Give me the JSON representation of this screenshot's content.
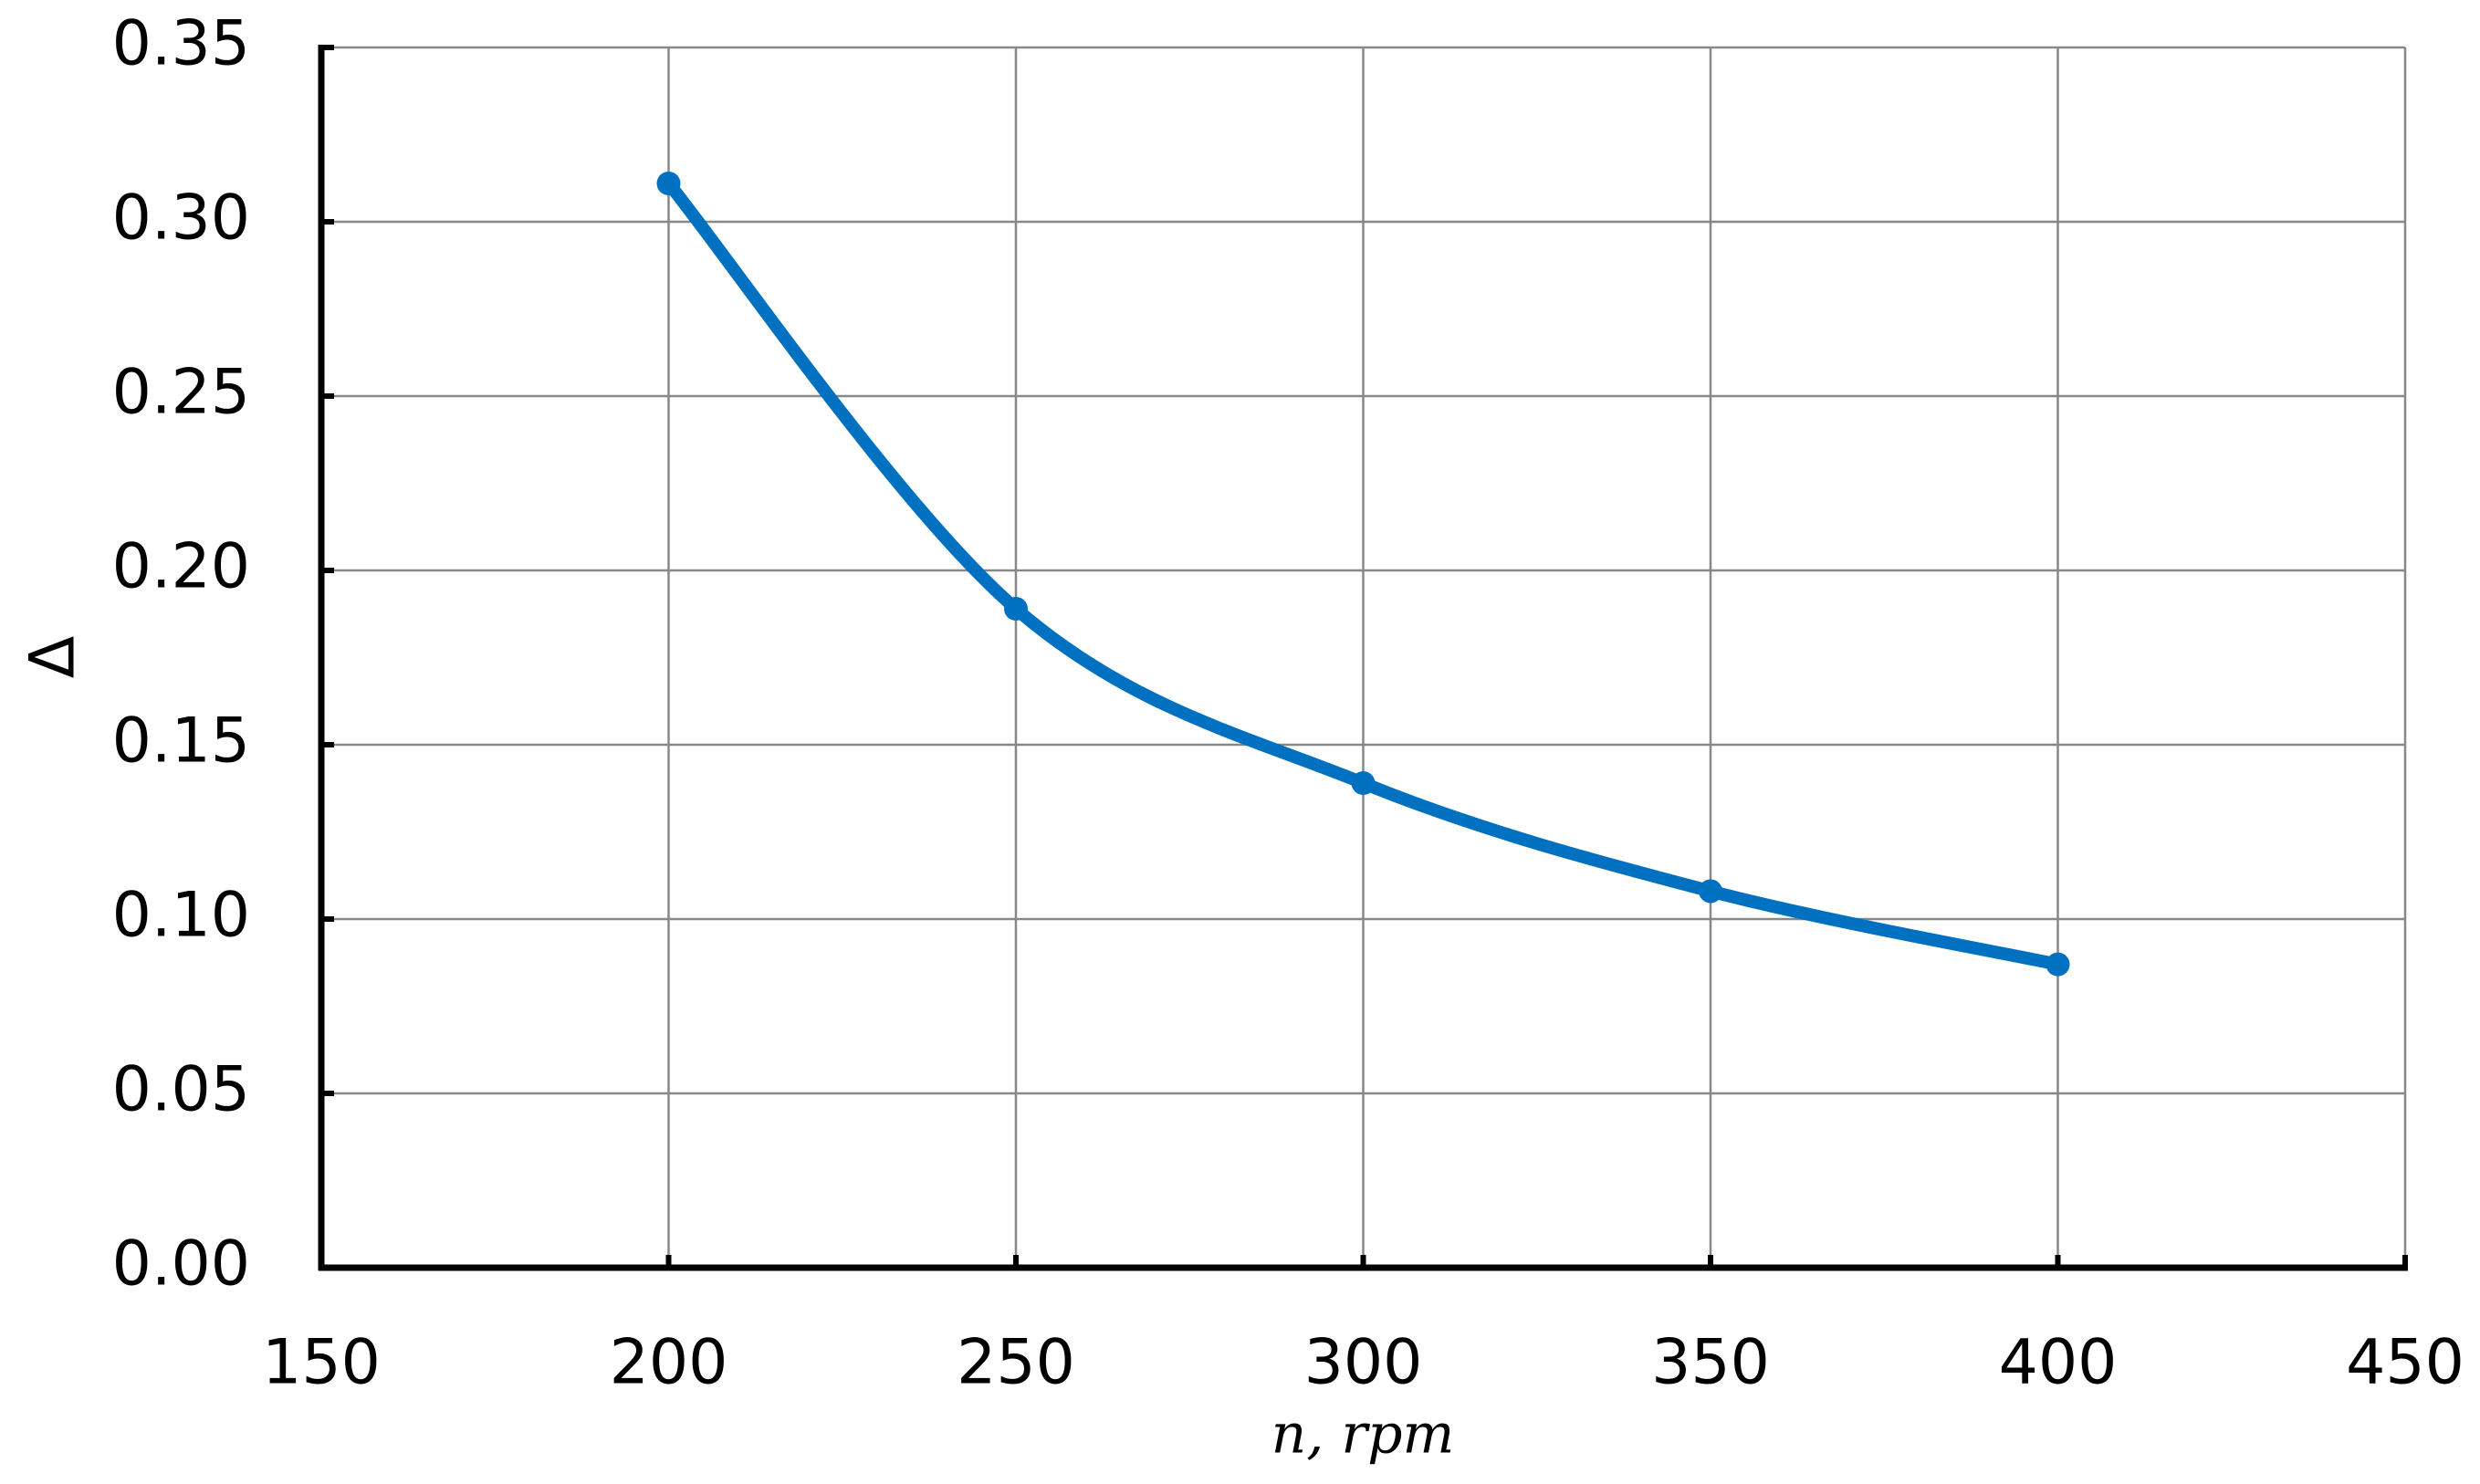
{
  "chart_data": {
    "type": "line",
    "xlabel": "n, rpm",
    "ylabel": "Δ",
    "x": [
      200,
      250,
      300,
      350,
      400
    ],
    "series": [
      {
        "name": "Δ",
        "color": "#0070c0",
        "values": [
          0.311,
          0.189,
          0.139,
          0.108,
          0.087
        ]
      }
    ],
    "xlim": [
      150,
      450
    ],
    "xticks": [
      150,
      200,
      250,
      300,
      350,
      400,
      450
    ],
    "ylim": [
      0,
      0.35
    ],
    "yticks": [
      {
        "value": 0,
        "label": "0.00"
      },
      0.05,
      {
        "value": 0.1,
        "label": "0.10"
      },
      0.15,
      {
        "value": 0.2,
        "label": "0.20"
      },
      0.25,
      {
        "value": 0.3,
        "label": "0.30"
      },
      0.35
    ],
    "grid": true,
    "smooth": true,
    "markers": true
  }
}
